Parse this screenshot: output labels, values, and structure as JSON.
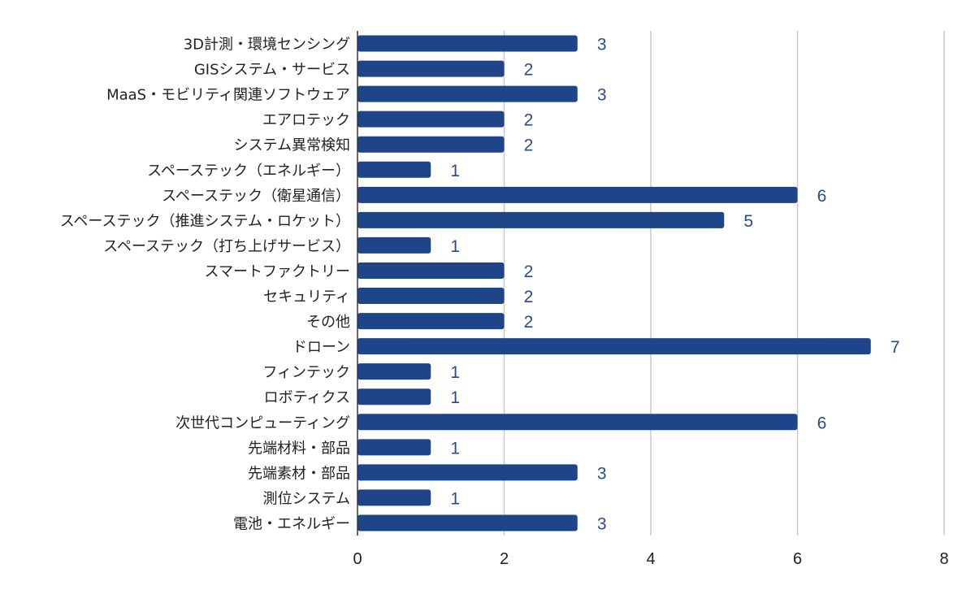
{
  "chart_data": {
    "type": "bar",
    "orientation": "horizontal",
    "title": "",
    "xlabel": "",
    "ylabel": "",
    "categories": [
      "3D計測・環境センシング",
      "GISシステム・サービス",
      "MaaS・モビリティ関連ソフトウェア",
      "エアロテック",
      "システム異常検知",
      "スペーステック（エネルギー）",
      "スペーステック（衛星通信）",
      "スペーステック（推進システム・ロケット）",
      "スペーステック（打ち上げサービス）",
      "スマートファクトリー",
      "セキュリティ",
      "その他",
      "ドローン",
      "フィンテック",
      "ロボティクス",
      "次世代コンピューティング",
      "先端材料・部品",
      "先端素材・部品",
      "測位システム",
      "電池・エネルギー"
    ],
    "values": [
      3,
      2,
      3,
      2,
      2,
      1,
      6,
      5,
      1,
      2,
      2,
      2,
      7,
      1,
      1,
      6,
      1,
      3,
      1,
      3
    ],
    "xlim": [
      0,
      8
    ],
    "xticks": [
      0,
      2,
      4,
      6,
      8
    ],
    "grid": "vertical",
    "legend": "none",
    "data_labels": true,
    "colors": {
      "bar": "#1e4489",
      "data_label": "#2a4a8c",
      "grid": "#c9c9c9",
      "axis": "#333333",
      "text": "#222222"
    }
  }
}
